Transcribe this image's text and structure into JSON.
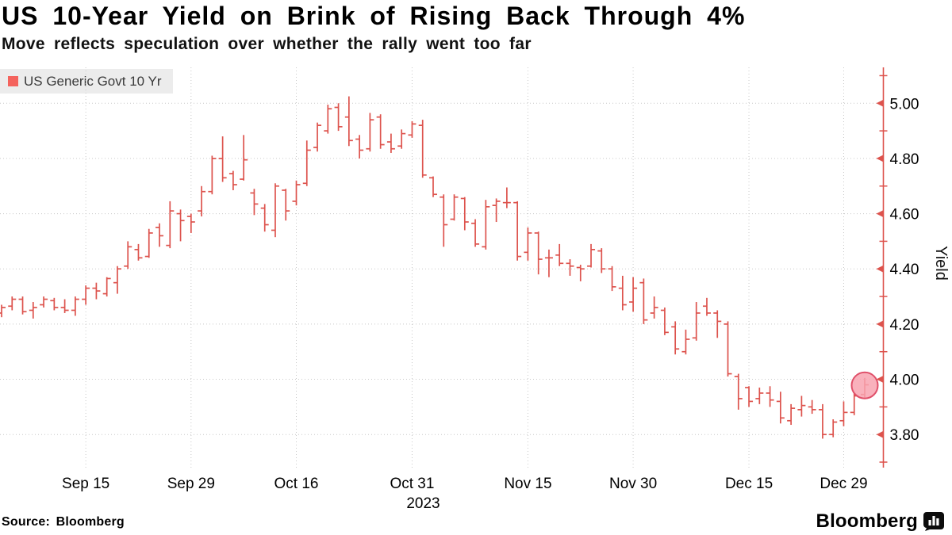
{
  "header": {
    "title": "US 10-Year Yield on Brink of Rising Back Through 4%",
    "subtitle": "Move reflects speculation over whether the rally went too far"
  },
  "legend": {
    "label": "US Generic Govt 10 Yr",
    "swatch_color": "#f4635d"
  },
  "footer": {
    "source": "Source: Bloomberg",
    "brand": "Bloomberg"
  },
  "colors": {
    "bar": "#dd534d",
    "axis": "#dd534d",
    "grid": "#c9c9c9",
    "tick_label": "#000000",
    "circle_fill": "#f8a3b0",
    "circle_stroke": "#e0506a",
    "legend_bg": "#ececec"
  },
  "chart_data": {
    "type": "ohlc",
    "title": "US 10-Year Yield on Brink of Rising Back Through 4%",
    "subtitle": "Move reflects speculation over whether the rally went too far",
    "series_name": "US Generic Govt 10 Yr",
    "ylabel": "Yield",
    "ylim": [
      3.68,
      5.13
    ],
    "grid": true,
    "legend_position": "top-left",
    "y_ticks_major": [
      {
        "label": "5.00",
        "value": 5.0
      },
      {
        "label": "4.80",
        "value": 4.8
      },
      {
        "label": "4.60",
        "value": 4.6
      },
      {
        "label": "4.40",
        "value": 4.4
      },
      {
        "label": "4.20",
        "value": 4.2
      },
      {
        "label": "4.00",
        "value": 4.0
      },
      {
        "label": "3.80",
        "value": 3.8
      }
    ],
    "y_ticks_minor": [
      5.1,
      4.9,
      4.7,
      4.5,
      4.3,
      4.1,
      3.9,
      3.7
    ],
    "x_ticks": [
      {
        "label": "Sep 15",
        "index": 8
      },
      {
        "label": "Sep 29",
        "index": 18
      },
      {
        "label": "Oct 16",
        "index": 28
      },
      {
        "label": "Oct 31",
        "index": 39
      },
      {
        "label": "Nov 15",
        "index": 50
      },
      {
        "label": "Nov 30",
        "index": 60
      },
      {
        "label": "Dec 15",
        "index": 71
      },
      {
        "label": "Dec 29",
        "index": 80
      }
    ],
    "year_label": {
      "text": "2023",
      "under_index": 39,
      "x_offset": 14
    },
    "highlight": {
      "bar_index": 82,
      "value": 3.978,
      "radius": 16.5
    },
    "bars": [
      {
        "d": "Sep 5",
        "o": 4.24,
        "h": 4.27,
        "l": 4.225,
        "c": 4.26
      },
      {
        "d": "Sep 6",
        "o": 4.265,
        "h": 4.3,
        "l": 4.25,
        "c": 4.29
      },
      {
        "d": "Sep 7",
        "o": 4.29,
        "h": 4.3,
        "l": 4.235,
        "c": 4.245
      },
      {
        "d": "Sep 8",
        "o": 4.25,
        "h": 4.28,
        "l": 4.22,
        "c": 4.26
      },
      {
        "d": "Sep 11",
        "o": 4.27,
        "h": 4.3,
        "l": 4.26,
        "c": 4.29
      },
      {
        "d": "Sep 12",
        "o": 4.285,
        "h": 4.295,
        "l": 4.25,
        "c": 4.26
      },
      {
        "d": "Sep 13",
        "o": 4.26,
        "h": 4.29,
        "l": 4.24,
        "c": 4.25
      },
      {
        "d": "Sep 14",
        "o": 4.25,
        "h": 4.3,
        "l": 4.23,
        "c": 4.29
      },
      {
        "d": "Sep 15",
        "o": 4.29,
        "h": 4.34,
        "l": 4.27,
        "c": 4.33
      },
      {
        "d": "Sep 18",
        "o": 4.33,
        "h": 4.35,
        "l": 4.29,
        "c": 4.32
      },
      {
        "d": "Sep 19",
        "o": 4.31,
        "h": 4.37,
        "l": 4.3,
        "c": 4.365
      },
      {
        "d": "Sep 20",
        "o": 4.35,
        "h": 4.41,
        "l": 4.31,
        "c": 4.4
      },
      {
        "d": "Sep 21",
        "o": 4.41,
        "h": 4.5,
        "l": 4.4,
        "c": 4.48
      },
      {
        "d": "Sep 22",
        "o": 4.47,
        "h": 4.49,
        "l": 4.43,
        "c": 4.44
      },
      {
        "d": "Sep 25",
        "o": 4.445,
        "h": 4.545,
        "l": 4.44,
        "c": 4.53
      },
      {
        "d": "Sep 26",
        "o": 4.55,
        "h": 4.565,
        "l": 4.48,
        "c": 4.52
      },
      {
        "d": "Sep 27",
        "o": 4.485,
        "h": 4.645,
        "l": 4.475,
        "c": 4.61
      },
      {
        "d": "Sep 28",
        "o": 4.6,
        "h": 4.615,
        "l": 4.5,
        "c": 4.575
      },
      {
        "d": "Sep 29",
        "o": 4.59,
        "h": 4.6,
        "l": 4.53,
        "c": 4.57
      },
      {
        "d": "Oct 2",
        "o": 4.61,
        "h": 4.7,
        "l": 4.59,
        "c": 4.68
      },
      {
        "d": "Oct 3",
        "o": 4.68,
        "h": 4.81,
        "l": 4.67,
        "c": 4.8
      },
      {
        "d": "Oct 4",
        "o": 4.8,
        "h": 4.88,
        "l": 4.715,
        "c": 4.73
      },
      {
        "d": "Oct 5",
        "o": 4.745,
        "h": 4.755,
        "l": 4.685,
        "c": 4.705
      },
      {
        "d": "Oct 6",
        "o": 4.725,
        "h": 4.885,
        "l": 4.72,
        "c": 4.795
      },
      {
        "d": "Oct 10",
        "o": 4.675,
        "h": 4.69,
        "l": 4.595,
        "c": 4.635
      },
      {
        "d": "Oct 11",
        "o": 4.62,
        "h": 4.635,
        "l": 4.535,
        "c": 4.56
      },
      {
        "d": "Oct 12",
        "o": 4.54,
        "h": 4.71,
        "l": 4.515,
        "c": 4.7
      },
      {
        "d": "Oct 13",
        "o": 4.685,
        "h": 4.69,
        "l": 4.575,
        "c": 4.61
      },
      {
        "d": "Oct 16",
        "o": 4.645,
        "h": 4.72,
        "l": 4.63,
        "c": 4.705
      },
      {
        "d": "Oct 17",
        "o": 4.71,
        "h": 4.865,
        "l": 4.7,
        "c": 4.83
      },
      {
        "d": "Oct 18",
        "o": 4.84,
        "h": 4.93,
        "l": 4.825,
        "c": 4.92
      },
      {
        "d": "Oct 19",
        "o": 4.9,
        "h": 4.995,
        "l": 4.89,
        "c": 4.98
      },
      {
        "d": "Oct 20",
        "o": 4.985,
        "h": 5.0,
        "l": 4.9,
        "c": 4.915
      },
      {
        "d": "Oct 23",
        "o": 4.95,
        "h": 5.025,
        "l": 4.845,
        "c": 4.865
      },
      {
        "d": "Oct 24",
        "o": 4.87,
        "h": 4.885,
        "l": 4.8,
        "c": 4.83
      },
      {
        "d": "Oct 25",
        "o": 4.835,
        "h": 4.965,
        "l": 4.825,
        "c": 4.94
      },
      {
        "d": "Oct 26",
        "o": 4.95,
        "h": 4.96,
        "l": 4.835,
        "c": 4.85
      },
      {
        "d": "Oct 27",
        "o": 4.86,
        "h": 4.89,
        "l": 4.82,
        "c": 4.835
      },
      {
        "d": "Oct 30",
        "o": 4.845,
        "h": 4.905,
        "l": 4.835,
        "c": 4.89
      },
      {
        "d": "Oct 31",
        "o": 4.885,
        "h": 4.935,
        "l": 4.875,
        "c": 4.925
      },
      {
        "d": "Nov 1",
        "o": 4.92,
        "h": 4.94,
        "l": 4.73,
        "c": 4.74
      },
      {
        "d": "Nov 2",
        "o": 4.73,
        "h": 4.735,
        "l": 4.66,
        "c": 4.67
      },
      {
        "d": "Nov 3",
        "o": 4.66,
        "h": 4.67,
        "l": 4.48,
        "c": 4.56
      },
      {
        "d": "Nov 6",
        "o": 4.58,
        "h": 4.67,
        "l": 4.575,
        "c": 4.66
      },
      {
        "d": "Nov 7",
        "o": 4.655,
        "h": 4.66,
        "l": 4.54,
        "c": 4.57
      },
      {
        "d": "Nov 8",
        "o": 4.565,
        "h": 4.58,
        "l": 4.48,
        "c": 4.49
      },
      {
        "d": "Nov 9",
        "o": 4.48,
        "h": 4.65,
        "l": 4.47,
        "c": 4.625
      },
      {
        "d": "Nov 10",
        "o": 4.63,
        "h": 4.655,
        "l": 4.57,
        "c": 4.645
      },
      {
        "d": "Nov 13",
        "o": 4.64,
        "h": 4.695,
        "l": 4.62,
        "c": 4.64
      },
      {
        "d": "Nov 14",
        "o": 4.64,
        "h": 4.645,
        "l": 4.43,
        "c": 4.445
      },
      {
        "d": "Nov 15",
        "o": 4.46,
        "h": 4.55,
        "l": 4.43,
        "c": 4.53
      },
      {
        "d": "Nov 16",
        "o": 4.53,
        "h": 4.535,
        "l": 4.38,
        "c": 4.435
      },
      {
        "d": "Nov 17",
        "o": 4.44,
        "h": 4.47,
        "l": 4.37,
        "c": 4.44
      },
      {
        "d": "Nov 20",
        "o": 4.45,
        "h": 4.49,
        "l": 4.41,
        "c": 4.42
      },
      {
        "d": "Nov 21",
        "o": 4.42,
        "h": 4.435,
        "l": 4.375,
        "c": 4.41
      },
      {
        "d": "Nov 22",
        "o": 4.405,
        "h": 4.415,
        "l": 4.355,
        "c": 4.4
      },
      {
        "d": "Nov 24",
        "o": 4.41,
        "h": 4.49,
        "l": 4.405,
        "c": 4.47
      },
      {
        "d": "Nov 27",
        "o": 4.465,
        "h": 4.475,
        "l": 4.385,
        "c": 4.4
      },
      {
        "d": "Nov 28",
        "o": 4.4,
        "h": 4.41,
        "l": 4.32,
        "c": 4.335
      },
      {
        "d": "Nov 29",
        "o": 4.33,
        "h": 4.375,
        "l": 4.25,
        "c": 4.27
      },
      {
        "d": "Nov 30",
        "o": 4.28,
        "h": 4.37,
        "l": 4.245,
        "c": 4.33
      },
      {
        "d": "Dec 1",
        "o": 4.35,
        "h": 4.365,
        "l": 4.2,
        "c": 4.215
      },
      {
        "d": "Dec 4",
        "o": 4.24,
        "h": 4.3,
        "l": 4.22,
        "c": 4.26
      },
      {
        "d": "Dec 5",
        "o": 4.25,
        "h": 4.26,
        "l": 4.16,
        "c": 4.17
      },
      {
        "d": "Dec 6",
        "o": 4.19,
        "h": 4.21,
        "l": 4.09,
        "c": 4.11
      },
      {
        "d": "Dec 7",
        "o": 4.1,
        "h": 4.18,
        "l": 4.09,
        "c": 4.145
      },
      {
        "d": "Dec 8",
        "o": 4.15,
        "h": 4.28,
        "l": 4.14,
        "c": 4.24
      },
      {
        "d": "Dec 11",
        "o": 4.265,
        "h": 4.295,
        "l": 4.23,
        "c": 4.24
      },
      {
        "d": "Dec 12",
        "o": 4.24,
        "h": 4.25,
        "l": 4.15,
        "c": 4.21
      },
      {
        "d": "Dec 13",
        "o": 4.2,
        "h": 4.21,
        "l": 4.01,
        "c": 4.02
      },
      {
        "d": "Dec 14",
        "o": 4.01,
        "h": 4.02,
        "l": 3.89,
        "c": 3.93
      },
      {
        "d": "Dec 15",
        "o": 3.97,
        "h": 3.975,
        "l": 3.9,
        "c": 3.92
      },
      {
        "d": "Dec 18",
        "o": 3.93,
        "h": 3.97,
        "l": 3.91,
        "c": 3.95
      },
      {
        "d": "Dec 19",
        "o": 3.95,
        "h": 3.975,
        "l": 3.9,
        "c": 3.925
      },
      {
        "d": "Dec 20",
        "o": 3.92,
        "h": 3.955,
        "l": 3.84,
        "c": 3.86
      },
      {
        "d": "Dec 21",
        "o": 3.85,
        "h": 3.91,
        "l": 3.835,
        "c": 3.895
      },
      {
        "d": "Dec 22",
        "o": 3.89,
        "h": 3.94,
        "l": 3.865,
        "c": 3.905
      },
      {
        "d": "Dec 26",
        "o": 3.9,
        "h": 3.925,
        "l": 3.875,
        "c": 3.89
      },
      {
        "d": "Dec 27",
        "o": 3.89,
        "h": 3.91,
        "l": 3.785,
        "c": 3.8
      },
      {
        "d": "Dec 28",
        "o": 3.8,
        "h": 3.855,
        "l": 3.79,
        "c": 3.845
      },
      {
        "d": "Dec 29",
        "o": 3.85,
        "h": 3.92,
        "l": 3.83,
        "c": 3.88
      },
      {
        "d": "Jan 2",
        "o": 3.88,
        "h": 3.95,
        "l": 3.87,
        "c": 3.94
      },
      {
        "d": "Jan 3",
        "o": 3.945,
        "h": 4.005,
        "l": 3.93,
        "c": 3.98
      }
    ]
  }
}
